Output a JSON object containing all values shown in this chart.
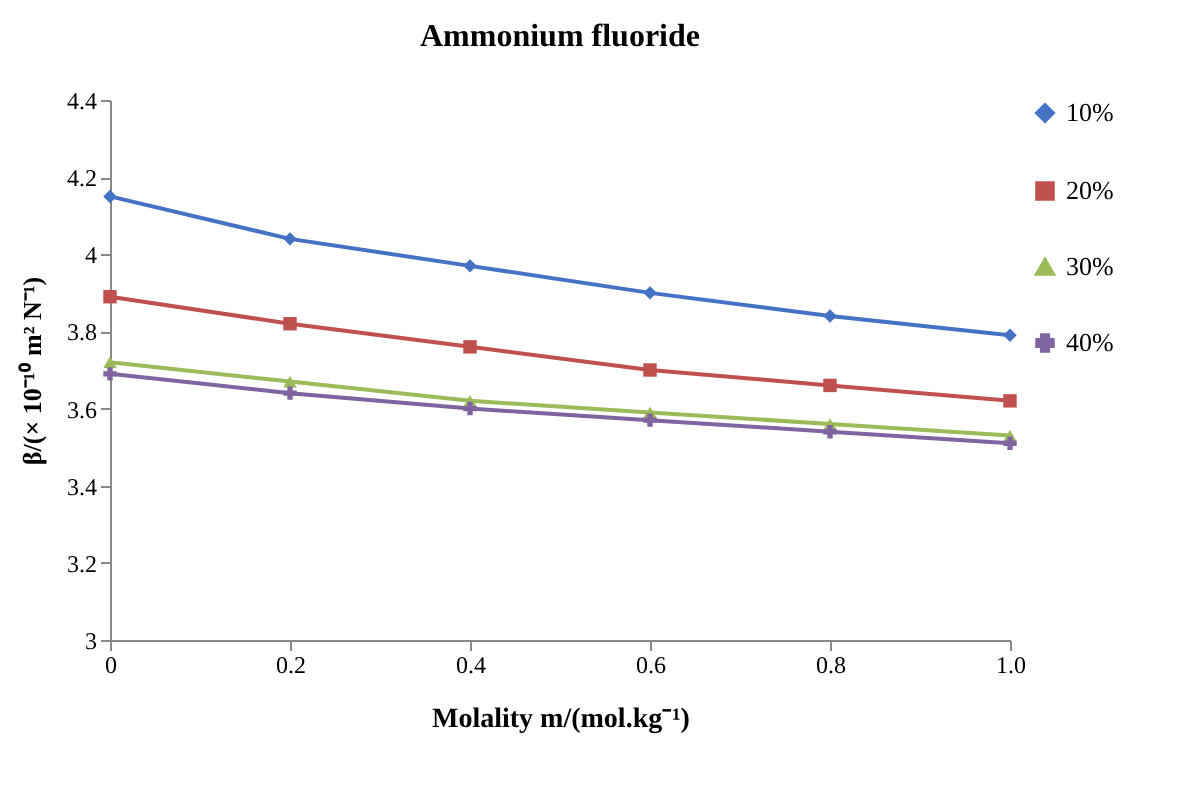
{
  "chart_data": {
    "type": "line",
    "title": "Ammonium fluoride",
    "xlabel": "Molality m/(mol.kg⁻¹)",
    "ylabel": "β/(× 10⁻¹⁰ m² N⁻¹)",
    "categories": [
      "0",
      "0.2",
      "0.4",
      "0.6",
      "0.8",
      "1.0"
    ],
    "ylim": [
      3,
      4.4
    ],
    "yticks": [
      3,
      3.2,
      3.4,
      3.6,
      3.8,
      4,
      4.2,
      4.4
    ],
    "grid": false,
    "legend": "right",
    "series": [
      {
        "name": "10%",
        "color": "#4472c4",
        "marker": "diamond",
        "values": [
          4.15,
          4.04,
          3.97,
          3.9,
          3.84,
          3.79
        ]
      },
      {
        "name": "20%",
        "color": "#c0504d",
        "marker": "square",
        "values": [
          3.89,
          3.82,
          3.76,
          3.7,
          3.66,
          3.62
        ]
      },
      {
        "name": "30%",
        "color": "#9bbb59",
        "marker": "triangle",
        "values": [
          3.72,
          3.67,
          3.62,
          3.59,
          3.56,
          3.53
        ]
      },
      {
        "name": "40%",
        "color": "#8064a2",
        "marker": "cross",
        "values": [
          3.69,
          3.64,
          3.6,
          3.57,
          3.54,
          3.51
        ]
      }
    ]
  }
}
